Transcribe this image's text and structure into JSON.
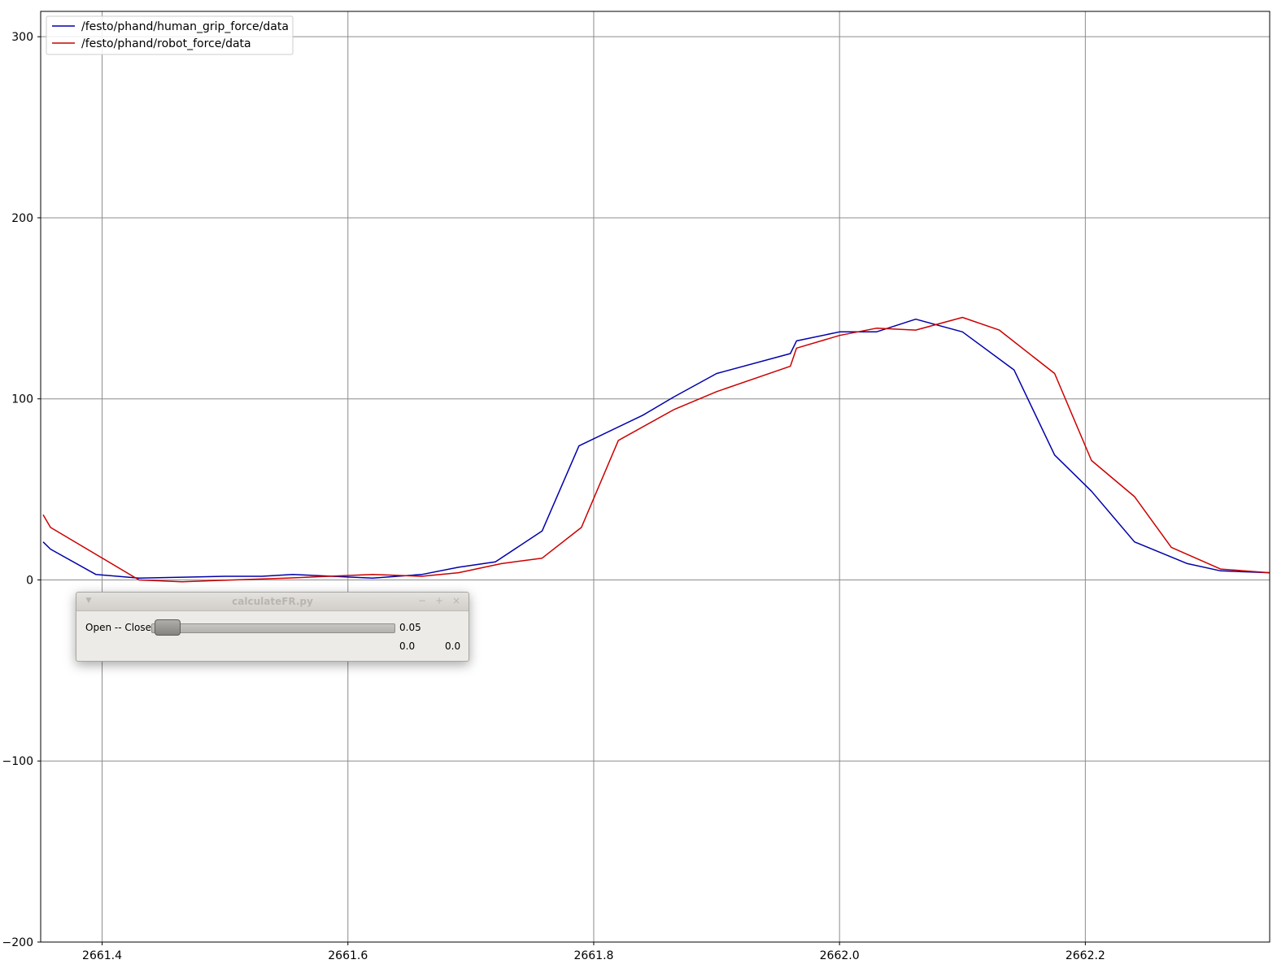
{
  "chart_data": {
    "type": "line",
    "title": "",
    "xlabel": "",
    "ylabel": "",
    "xlim": [
      2661.35,
      2662.35
    ],
    "ylim": [
      -200,
      314
    ],
    "x_ticks": [
      2661.4,
      2661.6,
      2661.8,
      2662.0,
      2662.2
    ],
    "x_tick_labels": [
      "2661.4",
      "2661.6",
      "2661.8",
      "2662.0",
      "2662.2"
    ],
    "y_ticks": [
      -200,
      -100,
      0,
      100,
      200,
      300
    ],
    "y_tick_labels": [
      "−200",
      "−100",
      "0",
      "100",
      "200",
      "300"
    ],
    "grid": true,
    "legend": "top-left",
    "series": [
      {
        "name": "/festo/phand/human_grip_force/data",
        "color": "#0000aa",
        "x": [
          2661.352,
          2661.358,
          2661.395,
          2661.43,
          2661.5,
          2661.53,
          2661.555,
          2661.62,
          2661.66,
          2661.69,
          2661.72,
          2661.758,
          2661.788,
          2661.84,
          2661.865,
          2661.9,
          2661.96,
          2661.965,
          2662.0,
          2662.03,
          2662.062,
          2662.1,
          2662.142,
          2662.175,
          2662.205,
          2662.24,
          2662.283,
          2662.31,
          2662.35
        ],
        "y": [
          21,
          17,
          3,
          1,
          2,
          2,
          3,
          1,
          3,
          7,
          10,
          27,
          74,
          91,
          101,
          114,
          125,
          132,
          137,
          137,
          144,
          137,
          116,
          69,
          49,
          21,
          9,
          5,
          4
        ]
      },
      {
        "name": "/festo/phand/robot_force/data",
        "color": "#cc0000",
        "x": [
          2661.352,
          2661.358,
          2661.43,
          2661.465,
          2661.55,
          2661.62,
          2661.66,
          2661.69,
          2661.725,
          2661.758,
          2661.79,
          2661.82,
          2661.865,
          2661.9,
          2661.96,
          2661.965,
          2662.0,
          2662.03,
          2662.062,
          2662.1,
          2662.13,
          2662.175,
          2662.205,
          2662.24,
          2662.27,
          2662.31,
          2662.35
        ],
        "y": [
          36,
          29,
          0,
          -1,
          1,
          3,
          2,
          4,
          9,
          12,
          29,
          77,
          94,
          104,
          118,
          128,
          135,
          139,
          138,
          145,
          138,
          114,
          66,
          46,
          18,
          6,
          4
        ]
      }
    ]
  },
  "dialog": {
    "title": "calculateFR.py",
    "menu_glyph": "▼",
    "min_glyph": "−",
    "max_glyph": "+",
    "close_glyph": "×",
    "slider_label": "Open -- Close",
    "slider_value": "0.05",
    "value_a": "0.0",
    "value_b": "0.0"
  }
}
